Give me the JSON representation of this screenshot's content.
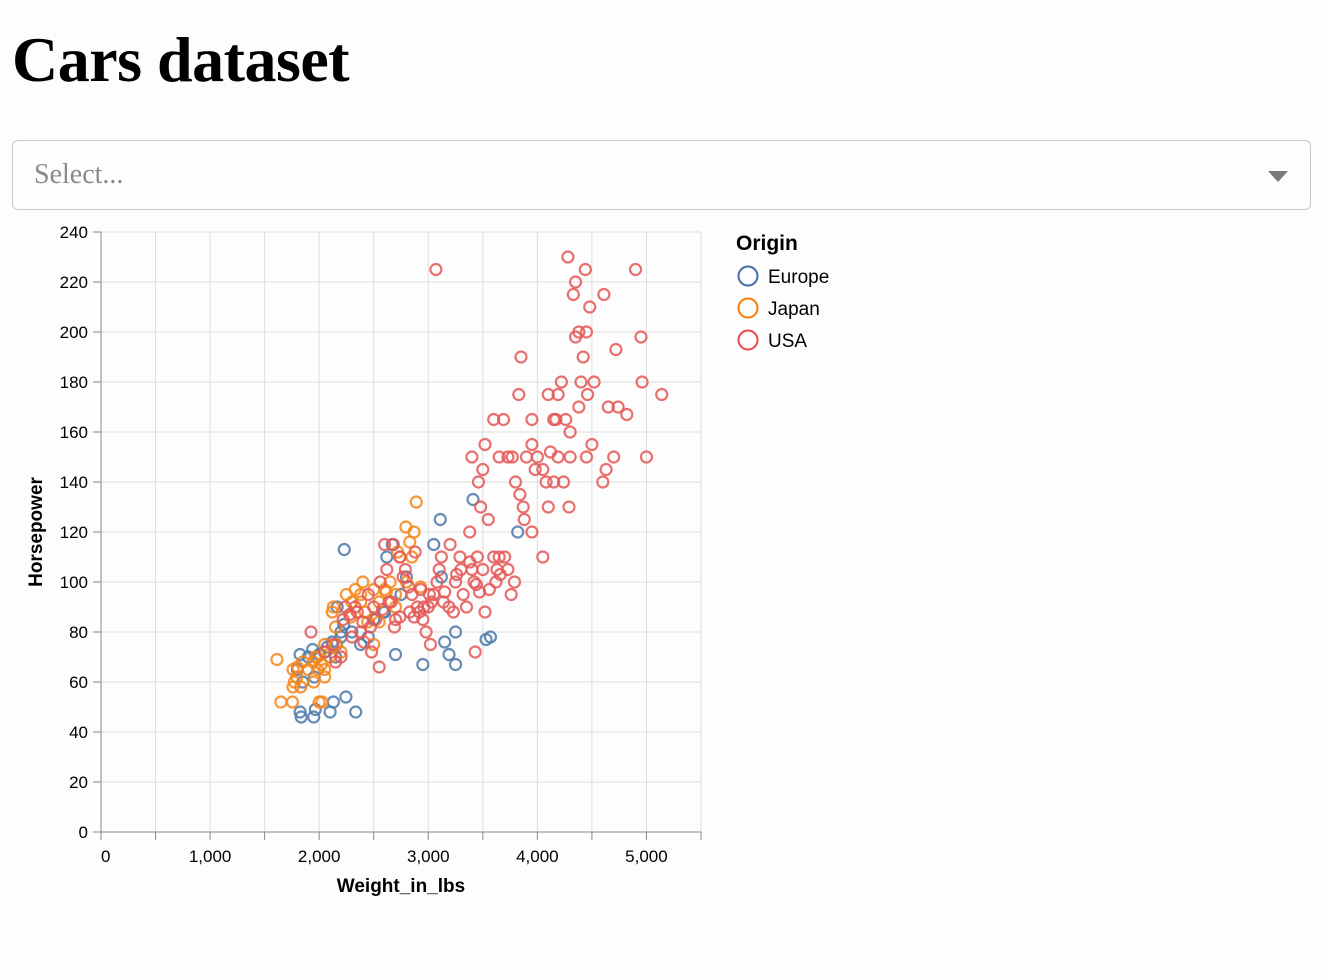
{
  "page": {
    "title": "Cars dataset"
  },
  "select": {
    "placeholder": "Select..."
  },
  "colors": {
    "Europe": "#4c78a8",
    "Japan": "#f58518",
    "USA": "#e45756",
    "grid": "#dddddd",
    "axis": "#888888"
  },
  "chart_data": {
    "type": "scatter",
    "title": "",
    "xlabel": "Weight_in_lbs",
    "ylabel": "Horsepower",
    "xlim": [
      0,
      5500
    ],
    "ylim": [
      0,
      240
    ],
    "x_ticks": [
      0,
      1000,
      2000,
      3000,
      4000,
      5000
    ],
    "x_tick_labels": [
      "0",
      "1,000",
      "2,000",
      "3,000",
      "4,000",
      "5,000"
    ],
    "y_ticks": [
      0,
      20,
      40,
      60,
      80,
      100,
      120,
      140,
      160,
      180,
      200,
      220,
      240
    ],
    "y_tick_labels": [
      "0",
      "20",
      "40",
      "60",
      "80",
      "100",
      "120",
      "140",
      "160",
      "180",
      "200",
      "220",
      "240"
    ],
    "grid": true,
    "marker": "hollow-circle",
    "legend": {
      "title": "Origin",
      "position": "right",
      "entries": [
        "Europe",
        "Japan",
        "USA"
      ]
    },
    "series": [
      {
        "name": "Europe",
        "color": "#4c78a8",
        "points": [
          [
            1835,
            46
          ],
          [
            1950,
            46
          ],
          [
            1825,
            48
          ],
          [
            2100,
            48
          ],
          [
            1965,
            49
          ],
          [
            2335,
            48
          ],
          [
            2130,
            52
          ],
          [
            2245,
            54
          ],
          [
            1850,
            60
          ],
          [
            1800,
            65
          ],
          [
            1825,
            71
          ],
          [
            1900,
            70
          ],
          [
            1940,
            73
          ],
          [
            2000,
            71
          ],
          [
            2050,
            72
          ],
          [
            2075,
            74
          ],
          [
            2160,
            75
          ],
          [
            2200,
            80
          ],
          [
            2225,
            83
          ],
          [
            2120,
            76
          ],
          [
            2200,
            78
          ],
          [
            2300,
            80
          ],
          [
            2450,
            78
          ],
          [
            2500,
            85
          ],
          [
            2600,
            88
          ],
          [
            2750,
            95
          ],
          [
            2800,
            102
          ],
          [
            2230,
            113
          ],
          [
            2165,
            90
          ],
          [
            2620,
            110
          ],
          [
            2670,
            115
          ],
          [
            2950,
            67
          ],
          [
            3190,
            71
          ],
          [
            3150,
            76
          ],
          [
            3250,
            80
          ],
          [
            3250,
            67
          ],
          [
            3530,
            77
          ],
          [
            3570,
            78
          ],
          [
            3410,
            133
          ],
          [
            3820,
            120
          ],
          [
            3120,
            102
          ],
          [
            3110,
            125
          ],
          [
            3050,
            115
          ],
          [
            2590,
            88
          ],
          [
            2700,
            71
          ],
          [
            2380,
            75
          ],
          [
            2150,
            70
          ],
          [
            1955,
            62
          ]
        ]
      },
      {
        "name": "Japan",
        "color": "#f58518",
        "points": [
          [
            1613,
            69
          ],
          [
            1649,
            52
          ],
          [
            1755,
            52
          ],
          [
            1760,
            58
          ],
          [
            1773,
            60
          ],
          [
            1795,
            62
          ],
          [
            1800,
            66
          ],
          [
            1850,
            68
          ],
          [
            1900,
            65
          ],
          [
            1945,
            68
          ],
          [
            1950,
            60
          ],
          [
            1965,
            70
          ],
          [
            1985,
            65
          ],
          [
            2000,
            52
          ],
          [
            2020,
            67
          ],
          [
            2050,
            62
          ],
          [
            2050,
            75
          ],
          [
            2100,
            70
          ],
          [
            2120,
            88
          ],
          [
            2130,
            90
          ],
          [
            2155,
            75
          ],
          [
            2200,
            72
          ],
          [
            2250,
            95
          ],
          [
            2300,
            92
          ],
          [
            2330,
            97
          ],
          [
            2380,
            95
          ],
          [
            2400,
            100
          ],
          [
            2420,
            88
          ],
          [
            2445,
            84
          ],
          [
            2500,
            97
          ],
          [
            2550,
            92
          ],
          [
            2600,
            97
          ],
          [
            2650,
            100
          ],
          [
            2700,
            90
          ],
          [
            2740,
            110
          ],
          [
            2795,
            122
          ],
          [
            2800,
            100
          ],
          [
            2830,
            116
          ],
          [
            2870,
            120
          ],
          [
            2890,
            132
          ],
          [
            2930,
            98
          ],
          [
            2700,
            95
          ],
          [
            2550,
            84
          ],
          [
            2500,
            75
          ],
          [
            2150,
            82
          ],
          [
            2050,
            65
          ],
          [
            1830,
            58
          ],
          [
            2380,
            92
          ],
          [
            2290,
            86
          ],
          [
            2615,
            96
          ],
          [
            2720,
            112
          ],
          [
            2850,
            110
          ],
          [
            1760,
            65
          ],
          [
            2025,
            52
          ],
          [
            1985,
            70
          ]
        ]
      },
      {
        "name": "USA",
        "color": "#e45756",
        "points": [
          [
            1925,
            80
          ],
          [
            2050,
            72
          ],
          [
            2125,
            75
          ],
          [
            2150,
            68
          ],
          [
            2200,
            70
          ],
          [
            2220,
            85
          ],
          [
            2240,
            90
          ],
          [
            2280,
            87
          ],
          [
            2300,
            78
          ],
          [
            2350,
            88
          ],
          [
            2380,
            80
          ],
          [
            2400,
            84
          ],
          [
            2450,
            95
          ],
          [
            2480,
            72
          ],
          [
            2500,
            90
          ],
          [
            2550,
            66
          ],
          [
            2560,
            100
          ],
          [
            2600,
            115
          ],
          [
            2640,
            92
          ],
          [
            2680,
            115
          ],
          [
            2700,
            85
          ],
          [
            2740,
            110
          ],
          [
            2790,
            105
          ],
          [
            2820,
            98
          ],
          [
            2850,
            95
          ],
          [
            2870,
            86
          ],
          [
            2900,
            90
          ],
          [
            2920,
            88
          ],
          [
            2950,
            85
          ],
          [
            2980,
            80
          ],
          [
            3000,
            90
          ],
          [
            3020,
            75
          ],
          [
            3050,
            95
          ],
          [
            3080,
            100
          ],
          [
            3100,
            105
          ],
          [
            3120,
            110
          ],
          [
            3150,
            96
          ],
          [
            3190,
            90
          ],
          [
            3200,
            115
          ],
          [
            3230,
            88
          ],
          [
            3250,
            100
          ],
          [
            3290,
            110
          ],
          [
            3300,
            105
          ],
          [
            3320,
            95
          ],
          [
            3350,
            90
          ],
          [
            3380,
            120
          ],
          [
            3400,
            105
          ],
          [
            3420,
            100
          ],
          [
            3430,
            72
          ],
          [
            3450,
            110
          ],
          [
            3480,
            130
          ],
          [
            3500,
            105
          ],
          [
            3520,
            88
          ],
          [
            3550,
            125
          ],
          [
            3600,
            110
          ],
          [
            3620,
            100
          ],
          [
            3650,
            110
          ],
          [
            3700,
            110
          ],
          [
            3730,
            105
          ],
          [
            3760,
            95
          ],
          [
            3790,
            100
          ],
          [
            3800,
            140
          ],
          [
            3830,
            175
          ],
          [
            3850,
            190
          ],
          [
            3870,
            130
          ],
          [
            3900,
            150
          ],
          [
            3950,
            120
          ],
          [
            3980,
            145
          ],
          [
            4000,
            150
          ],
          [
            4050,
            110
          ],
          [
            4080,
            140
          ],
          [
            4100,
            175
          ],
          [
            4120,
            152
          ],
          [
            4150,
            165
          ],
          [
            4190,
            175
          ],
          [
            4220,
            180
          ],
          [
            4240,
            140
          ],
          [
            4260,
            165
          ],
          [
            4280,
            230
          ],
          [
            4290,
            130
          ],
          [
            4300,
            150
          ],
          [
            4330,
            215
          ],
          [
            4350,
            198
          ],
          [
            4380,
            200
          ],
          [
            4400,
            180
          ],
          [
            4420,
            190
          ],
          [
            4440,
            225
          ],
          [
            4450,
            150
          ],
          [
            4460,
            175
          ],
          [
            4500,
            155
          ],
          [
            4520,
            180
          ],
          [
            4600,
            140
          ],
          [
            4610,
            215
          ],
          [
            4630,
            145
          ],
          [
            4650,
            170
          ],
          [
            4700,
            150
          ],
          [
            4720,
            193
          ],
          [
            4740,
            170
          ],
          [
            4820,
            167
          ],
          [
            4900,
            225
          ],
          [
            4950,
            198
          ],
          [
            4960,
            180
          ],
          [
            5000,
            150
          ],
          [
            5140,
            175
          ],
          [
            3070,
            225
          ],
          [
            3400,
            150
          ],
          [
            3460,
            140
          ],
          [
            3600,
            165
          ],
          [
            3650,
            150
          ],
          [
            3690,
            165
          ],
          [
            3500,
            145
          ],
          [
            3520,
            155
          ],
          [
            3730,
            150
          ],
          [
            3770,
            150
          ],
          [
            3840,
            135
          ],
          [
            3880,
            125
          ],
          [
            3950,
            165
          ],
          [
            4100,
            130
          ],
          [
            4170,
            165
          ],
          [
            4190,
            150
          ],
          [
            2620,
            105
          ],
          [
            2770,
            102
          ],
          [
            2880,
            112
          ],
          [
            2930,
            97
          ],
          [
            3010,
            95
          ],
          [
            3140,
            92
          ],
          [
            3260,
            103
          ],
          [
            3380,
            108
          ],
          [
            3440,
            99
          ],
          [
            3470,
            96
          ],
          [
            3560,
            97
          ],
          [
            3630,
            105
          ],
          [
            3660,
            103
          ],
          [
            2330,
            90
          ],
          [
            2410,
            76
          ],
          [
            2470,
            82
          ],
          [
            2520,
            85
          ],
          [
            2580,
            89
          ],
          [
            2660,
            92
          ],
          [
            2690,
            82
          ],
          [
            2740,
            86
          ],
          [
            2830,
            88
          ],
          [
            2960,
            90
          ],
          [
            3030,
            92
          ],
          [
            4350,
            220
          ],
          [
            4450,
            200
          ],
          [
            4480,
            210
          ],
          [
            4300,
            160
          ],
          [
            4380,
            170
          ],
          [
            4150,
            140
          ],
          [
            4050,
            145
          ],
          [
            3950,
            155
          ]
        ]
      }
    ]
  }
}
